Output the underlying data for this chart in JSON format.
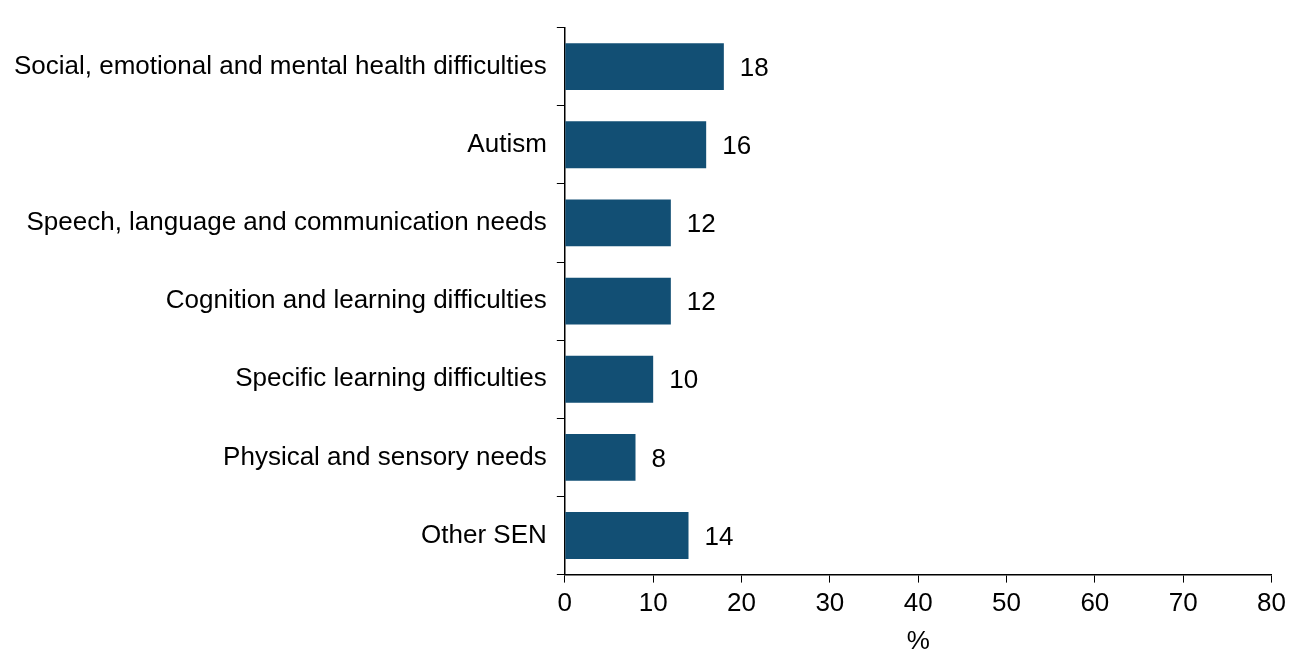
{
  "chart_data": {
    "type": "bar",
    "orientation": "horizontal",
    "xlabel": "%",
    "categories": [
      "Social, emotional and mental health difficulties",
      "Autism",
      "Speech, language and communication needs",
      "Cognition and learning difficulties",
      "Specific learning difficulties",
      "Physical and sensory needs",
      "Other SEN"
    ],
    "values": [
      18,
      16,
      12,
      12,
      10,
      8,
      14
    ],
    "color": "#124f74",
    "xlim": [
      0,
      80
    ],
    "xticks": [
      0,
      10,
      20,
      30,
      40,
      50,
      60,
      70,
      80
    ],
    "grid": false,
    "legend": false,
    "data_labels": true
  }
}
